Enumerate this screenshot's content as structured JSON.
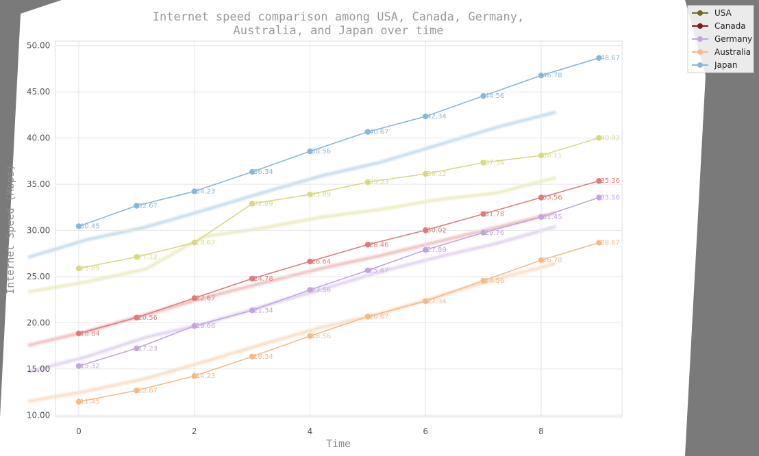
{
  "chart_data": {
    "type": "line",
    "title_lines": [
      "Internet speed comparison among USA, Canada, Germany,",
      "Australia, and Japan over time"
    ],
    "xlabel": "Time",
    "ylabel": "Internet Speed (Mbps)",
    "x": [
      0,
      1,
      2,
      3,
      4,
      5,
      6,
      7,
      8,
      9
    ],
    "xlim": [
      -0.4,
      9.4
    ],
    "ylim": [
      9.8,
      50.5
    ],
    "xticks": [
      0,
      2,
      4,
      6,
      8
    ],
    "yticks": [
      "10.00",
      "15.00",
      "20.00",
      "25.00",
      "30.00",
      "35.00",
      "40.00",
      "45.00",
      "50.00"
    ],
    "grid": true,
    "legend_position": "top-right",
    "series": [
      {
        "name": "USA",
        "legend_color": "#6b6b1e",
        "color": "#d8d884",
        "values": [
          25.89,
          27.12,
          28.67,
          32.89,
          33.89,
          35.23,
          36.12,
          37.34,
          38.11,
          40.02
        ],
        "labels": [
          "25.89",
          "27.12",
          "28.67",
          "32.89",
          "33.89",
          "35.23",
          "36.12",
          "37.34",
          "38.11",
          "40.02"
        ]
      },
      {
        "name": "Canada",
        "legend_color": "#7a1a1a",
        "color": "#e07a7a",
        "values": [
          18.84,
          20.56,
          22.67,
          24.78,
          26.64,
          28.46,
          30.02,
          31.78,
          33.56,
          35.36
        ],
        "labels": [
          "18.84",
          "20.56",
          "22.67",
          "24.78",
          "26.64",
          "28.46",
          "30.02",
          "31.78",
          "33.56",
          "35.36"
        ]
      },
      {
        "name": "Germany",
        "legend_color": "#c2a5df",
        "color": "#c2a5df",
        "values": [
          15.32,
          17.23,
          19.66,
          21.34,
          23.56,
          25.67,
          27.89,
          29.76,
          31.45,
          33.56
        ],
        "labels": [
          "15.32",
          "17.23",
          "19.66",
          "21.34",
          "23.56",
          "25.67",
          "27.89",
          "29.76",
          "31.45",
          "33.56"
        ]
      },
      {
        "name": "Australia",
        "legend_color": "#f5b988",
        "color": "#f5b988",
        "values": [
          11.45,
          12.67,
          14.23,
          16.34,
          18.56,
          20.67,
          22.34,
          24.56,
          26.78,
          28.67
        ],
        "labels": [
          "11.45",
          "12.67",
          "14.23",
          "16.34",
          "18.56",
          "20.67",
          "22.34",
          "24.56",
          "26.78",
          "28.67"
        ]
      },
      {
        "name": "Japan",
        "legend_color": "#8ab6d6",
        "color": "#8ab6d6",
        "values": [
          30.45,
          32.67,
          34.23,
          36.34,
          38.56,
          40.67,
          42.34,
          44.56,
          46.78,
          48.67
        ],
        "labels": [
          "30.45",
          "32.67",
          "34.23",
          "36.34",
          "38.56",
          "40.67",
          "42.34",
          "44.56",
          "46.78",
          "48.67"
        ]
      }
    ]
  }
}
